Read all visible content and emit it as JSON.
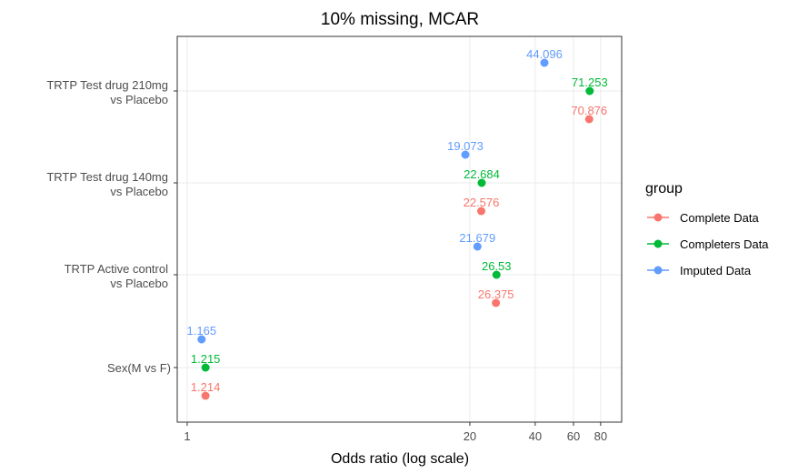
{
  "chart_data": {
    "type": "scatter",
    "title": "10% missing, MCAR",
    "xlabel": "Odds ratio (log scale)",
    "x_scale": "log",
    "xlim": [
      0.9,
      100
    ],
    "x_ticks": [
      1,
      20,
      40,
      60,
      80
    ],
    "x_tick_labels": [
      "1",
      "20",
      "40",
      "60",
      "80"
    ],
    "grid": true,
    "categories": [
      {
        "line1": "TRTP Test drug 210mg",
        "line2": "vs Placebo"
      },
      {
        "line1": "TRTP Test drug 140mg",
        "line2": "vs Placebo"
      },
      {
        "line1": "TRTP Active control",
        "line2": "vs Placebo"
      },
      {
        "line1": "Sex(M vs F)",
        "line2": ""
      }
    ],
    "series": [
      {
        "name": "Imputed Data",
        "color": "#619cff",
        "values": [
          44.096,
          19.073,
          21.679,
          1.165
        ],
        "labels": [
          "44.096",
          "19.073",
          "21.679",
          "1.165"
        ]
      },
      {
        "name": "Completers Data",
        "color": "#00ba38",
        "values": [
          71.253,
          22.684,
          26.53,
          1.215
        ],
        "labels": [
          "71.253",
          "22.684",
          "26.53",
          "1.215"
        ]
      },
      {
        "name": "Complete Data",
        "color": "#f8766d",
        "values": [
          70.876,
          22.576,
          26.375,
          1.214
        ],
        "labels": [
          "70.876",
          "22.576",
          "26.375",
          "1.214"
        ]
      }
    ],
    "legend": {
      "title": "group",
      "position": "right",
      "items": [
        {
          "name": "Complete Data",
          "color": "#f8766d"
        },
        {
          "name": "Completers Data",
          "color": "#00ba38"
        },
        {
          "name": "Imputed Data",
          "color": "#619cff"
        }
      ]
    }
  }
}
